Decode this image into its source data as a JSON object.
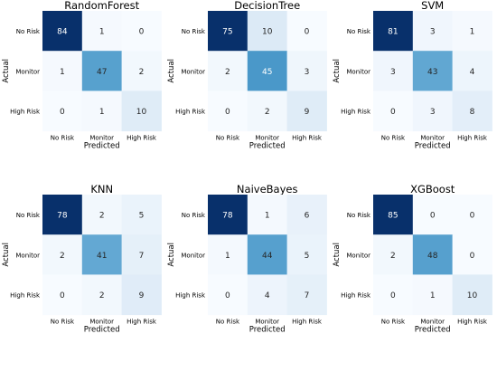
{
  "chart_data": [
    {
      "type": "heatmap",
      "title": "RandomForest",
      "xlabel": "Predicted",
      "ylabel": "Actual",
      "x_categories": [
        "No Risk",
        "Monitor",
        "High Risk"
      ],
      "y_categories": [
        "No Risk",
        "Monitor",
        "High Risk"
      ],
      "values": [
        [
          84,
          1,
          0
        ],
        [
          1,
          47,
          2
        ],
        [
          0,
          1,
          10
        ]
      ],
      "colormap": "Blues"
    },
    {
      "type": "heatmap",
      "title": "DecisionTree",
      "xlabel": "Predicted",
      "ylabel": "Actual",
      "x_categories": [
        "No Risk",
        "Monitor",
        "High Risk"
      ],
      "y_categories": [
        "No Risk",
        "Monitor",
        "High Risk"
      ],
      "values": [
        [
          75,
          10,
          0
        ],
        [
          2,
          45,
          3
        ],
        [
          0,
          2,
          9
        ]
      ],
      "colormap": "Blues"
    },
    {
      "type": "heatmap",
      "title": "SVM",
      "xlabel": "Predicted",
      "ylabel": "Actual",
      "x_categories": [
        "No Risk",
        "Monitor",
        "High Risk"
      ],
      "y_categories": [
        "No Risk",
        "Monitor",
        "High Risk"
      ],
      "values": [
        [
          81,
          3,
          1
        ],
        [
          3,
          43,
          4
        ],
        [
          0,
          3,
          8
        ]
      ],
      "colormap": "Blues"
    },
    {
      "type": "heatmap",
      "title": "KNN",
      "xlabel": "Predicted",
      "ylabel": "Actual",
      "x_categories": [
        "No Risk",
        "Monitor",
        "High Risk"
      ],
      "y_categories": [
        "No Risk",
        "Monitor",
        "High Risk"
      ],
      "values": [
        [
          78,
          2,
          5
        ],
        [
          2,
          41,
          7
        ],
        [
          0,
          2,
          9
        ]
      ],
      "colormap": "Blues"
    },
    {
      "type": "heatmap",
      "title": "NaiveBayes",
      "xlabel": "Predicted",
      "ylabel": "Actual",
      "x_categories": [
        "No Risk",
        "Monitor",
        "High Risk"
      ],
      "y_categories": [
        "No Risk",
        "Monitor",
        "High Risk"
      ],
      "values": [
        [
          78,
          1,
          6
        ],
        [
          1,
          44,
          5
        ],
        [
          0,
          4,
          7
        ]
      ],
      "colormap": "Blues"
    },
    {
      "type": "heatmap",
      "title": "XGBoost",
      "xlabel": "Predicted",
      "ylabel": "Actual",
      "x_categories": [
        "No Risk",
        "Monitor",
        "High Risk"
      ],
      "y_categories": [
        "No Risk",
        "Monitor",
        "High Risk"
      ],
      "values": [
        [
          85,
          0,
          0
        ],
        [
          2,
          48,
          0
        ],
        [
          0,
          1,
          10
        ]
      ],
      "colormap": "Blues"
    }
  ]
}
